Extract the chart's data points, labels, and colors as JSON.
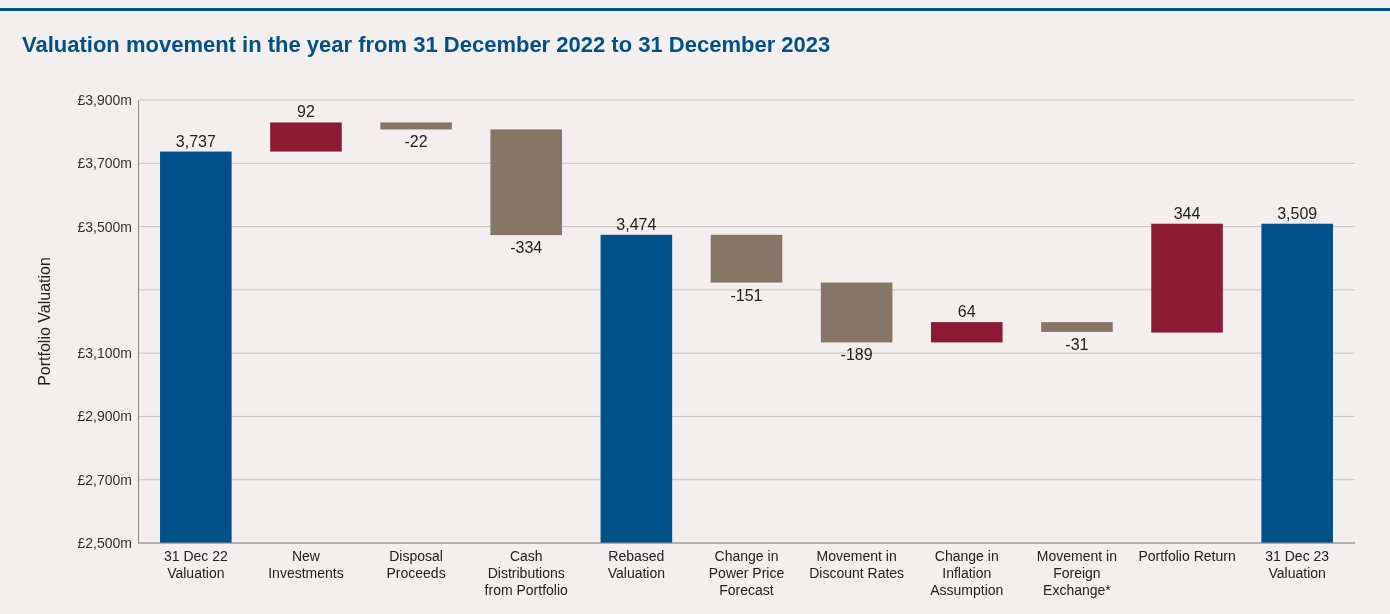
{
  "chart_data": {
    "type": "bar",
    "title": "Valuation movement in the year from 31 December 2022 to 31 December 2023",
    "ylabel": "Portfolio Valuation",
    "categories": [
      "31 Dec 22 Valuation",
      "New Investments",
      "Disposal Proceeds",
      "Cash Distributions from Portfolio",
      "Rebased Valuation",
      "Change in Power Price Forecast",
      "Movement in Discount Rates",
      "Change in Inflation Assumption",
      "Movement in Foreign Exchange*",
      "Portfolio Return",
      "31 Dec 23 Valuation"
    ],
    "values": [
      3737,
      92,
      -22,
      -334,
      3474,
      -151,
      -189,
      64,
      -31,
      344,
      3509
    ],
    "base": [
      null,
      3737,
      3829,
      3807,
      null,
      3474,
      3323,
      3134,
      3198,
      3165,
      null
    ],
    "colors": [
      "#005189",
      "#8b1a32",
      "#877565",
      "#877565",
      "#005189",
      "#877565",
      "#877565",
      "#8b1a32",
      "#877565",
      "#8b1a32",
      "#005189"
    ],
    "value_labels": [
      "3,737",
      "92",
      "-22",
      "-334",
      "3,474",
      "-151",
      "-189",
      "64",
      "-31",
      "344",
      "3,509"
    ],
    "ylim": [
      2500,
      3900
    ],
    "yticks": [
      {
        "value": 2500,
        "label": "£2,500m"
      },
      {
        "value": 2700,
        "label": "£2,700m"
      },
      {
        "value": 2900,
        "label": "£2,900m"
      },
      {
        "value": 3100,
        "label": "£3,100m"
      },
      {
        "value": 3300,
        "label": null
      },
      {
        "value": 3500,
        "label": "£3,500m"
      },
      {
        "value": 3700,
        "label": "£3,700m"
      },
      {
        "value": 3900,
        "label": "£3,900m"
      }
    ],
    "grid": "y"
  }
}
